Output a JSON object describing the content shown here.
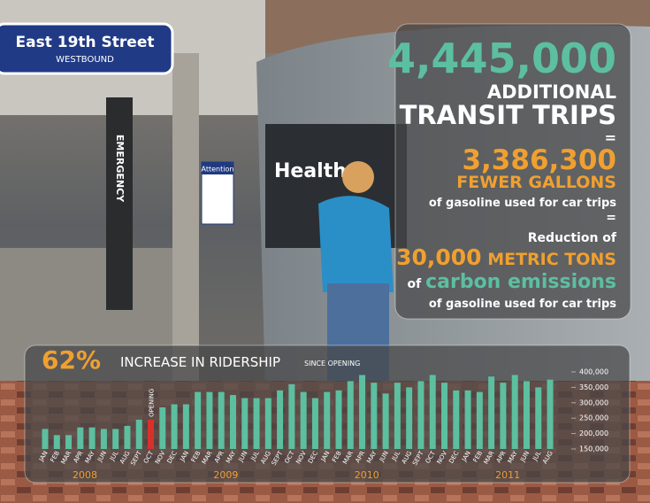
{
  "sign": {
    "street": "East 19th Street",
    "direction": "WESTBOUND",
    "emergency": "EMERGENCY",
    "attention": "Attention",
    "bus_text": "Health"
  },
  "infographic": {
    "trips": "4,445,000",
    "trips_line1": "ADDITIONAL",
    "trips_line2": "TRANSIT TRIPS",
    "equals1": "=",
    "gallons": "3,386,300",
    "gallons_label": "FEWER GALLONS",
    "gallons_note": "of gasoline used for car trips",
    "equals2": "=",
    "reduction": "Reduction of",
    "tons": "30,000",
    "tons_label": "METRIC TONS",
    "of": "of",
    "carbon": "carbon emissions",
    "carbon_note": "of gasoline used for car trips"
  },
  "chart_data": {
    "type": "bar",
    "title_stat": "62%",
    "title": "INCREASE IN RIDERSHIP",
    "subtitle": "SINCE OPENING",
    "annotation": "OPENING",
    "categories": [
      "JAN",
      "FEB",
      "MAR",
      "APR",
      "MAY",
      "JUN",
      "JUL",
      "AUG",
      "SEPT",
      "OCT",
      "NOV",
      "DEC",
      "JAN",
      "FEB",
      "MAR",
      "APR",
      "MAY",
      "JUN",
      "JUL",
      "AUG",
      "SEPT",
      "OCT",
      "NOV",
      "DEC",
      "JAN",
      "FEB",
      "MAR",
      "APR",
      "MAY",
      "JUN",
      "JUL",
      "AUG",
      "SEPT",
      "OCT",
      "NOV",
      "DEC",
      "JAN",
      "FEB",
      "MAR",
      "APR",
      "MAY",
      "JUN",
      "JUL",
      "AUG"
    ],
    "years": [
      "2008",
      "2009",
      "2010",
      "2011"
    ],
    "values": [
      215000,
      195000,
      195000,
      220000,
      220000,
      215000,
      215000,
      225000,
      245000,
      245000,
      285000,
      295000,
      295000,
      335000,
      335000,
      335000,
      325000,
      315000,
      315000,
      315000,
      340000,
      360000,
      335000,
      315000,
      335000,
      340000,
      370000,
      390000,
      365000,
      330000,
      365000,
      350000,
      370000,
      390000,
      365000,
      340000,
      340000,
      335000,
      385000,
      365000,
      390000,
      370000,
      350000,
      375000
    ],
    "color": "#5cbfa0",
    "highlight_color": "#d8312c",
    "colors": [
      "#5cbfa0",
      "#5cbfa0",
      "#5cbfa0",
      "#5cbfa0",
      "#5cbfa0",
      "#5cbfa0",
      "#5cbfa0",
      "#5cbfa0",
      "#5cbfa0",
      "#d8312c",
      "#5cbfa0",
      "#5cbfa0",
      "#5cbfa0",
      "#5cbfa0",
      "#5cbfa0",
      "#5cbfa0",
      "#5cbfa0",
      "#5cbfa0",
      "#5cbfa0",
      "#5cbfa0",
      "#5cbfa0",
      "#5cbfa0",
      "#5cbfa0",
      "#5cbfa0",
      "#5cbfa0",
      "#5cbfa0",
      "#5cbfa0",
      "#5cbfa0",
      "#5cbfa0",
      "#5cbfa0",
      "#5cbfa0",
      "#5cbfa0",
      "#5cbfa0",
      "#5cbfa0",
      "#5cbfa0",
      "#5cbfa0",
      "#5cbfa0",
      "#5cbfa0",
      "#5cbfa0",
      "#5cbfa0",
      "#5cbfa0",
      "#5cbfa0",
      "#5cbfa0",
      "#5cbfa0"
    ],
    "ylim": [
      150000,
      410000
    ],
    "yticks": [
      {
        "value": 150000,
        "label": "150,000"
      },
      {
        "value": 200000,
        "label": "200,000"
      },
      {
        "value": 250000,
        "label": "250,000"
      },
      {
        "value": 300000,
        "label": "300,000"
      },
      {
        "value": 350000,
        "label": "350,000"
      },
      {
        "value": 400000,
        "label": "400,000"
      }
    ],
    "grid": false
  }
}
